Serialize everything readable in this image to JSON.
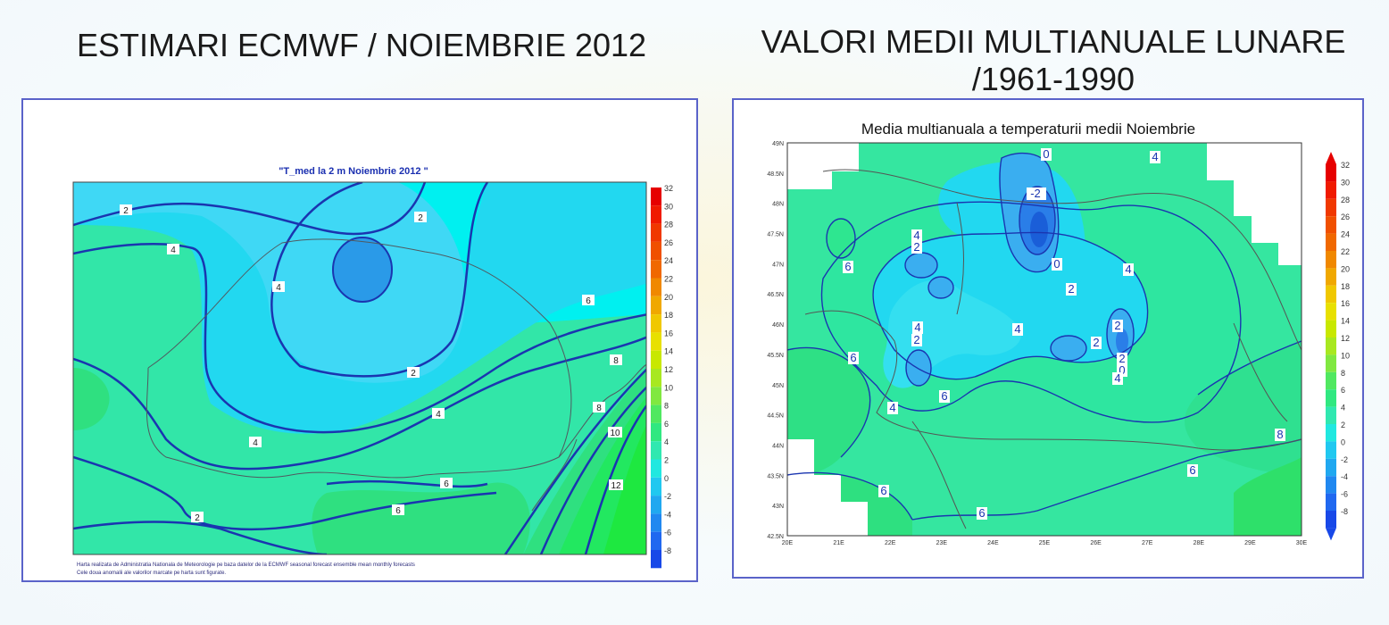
{
  "slide": {
    "left_title": "ESTIMARI ECMWF / NOIEMBRIE 2012",
    "right_title_line1": "VALORI MEDII MULTIANUALE LUNARE",
    "right_title_line2": "/1961-1990"
  },
  "left_map": {
    "title": "\"T_med la 2 m Noiembrie 2012 \"",
    "footnote_line1": "Harta realizata de Administratia Nationala de Meteorologie pe baza datelor de la ECMWF seasonal forecast ensemble mean monthly forecasts",
    "footnote_line2": "Cele doua anomalii ale valorilor marcate pe harta sunt figurate.",
    "colorbar_labels": [
      "32",
      "30",
      "28",
      "26",
      "24",
      "22",
      "20",
      "18",
      "16",
      "14",
      "12",
      "10",
      "8",
      "6",
      "4",
      "2",
      "0",
      "-2",
      "-4",
      "-6",
      "-8"
    ],
    "contour_labels": [
      "2",
      "2",
      "4",
      "4",
      "2",
      "4",
      "6",
      "4",
      "2",
      "6",
      "8",
      "6",
      "8",
      "10",
      "12",
      "6",
      "4"
    ]
  },
  "right_map": {
    "title": "Media multianuala a temperaturii medii Noiembrie",
    "y_ticks": [
      "49N",
      "48.5N",
      "48N",
      "47.5N",
      "47N",
      "46.5N",
      "46N",
      "45.5N",
      "45N",
      "44.5N",
      "44N",
      "43.5N",
      "43N",
      "42.5N"
    ],
    "x_ticks": [
      "20E",
      "21E",
      "22E",
      "23E",
      "24E",
      "25E",
      "26E",
      "27E",
      "28E",
      "29E",
      "30E"
    ],
    "colorbar_labels": [
      "32",
      "30",
      "28",
      "26",
      "24",
      "22",
      "20",
      "18",
      "16",
      "14",
      "12",
      "10",
      "8",
      "6",
      "4",
      "2",
      "0",
      "-2",
      "-4",
      "-6",
      "-8"
    ],
    "contour_labels": [
      "0",
      "-2",
      "0",
      "4",
      "2",
      "4",
      "2",
      "2",
      "6",
      "4",
      "2",
      "2",
      "0",
      "4",
      "2",
      "4",
      "4",
      "6",
      "4",
      "6",
      "8",
      "6",
      "6",
      "6"
    ]
  },
  "colors": {
    "title_text": "#1a1a1a",
    "panel_border": "#5a63c9",
    "contour_line": "#1a35b0",
    "cyan": "#00f0f0",
    "light_blue": "#22d8f0",
    "mid_blue": "#3aaef0",
    "teal_green": "#32e6a8",
    "green": "#2fe080",
    "bright_green": "#1ee840"
  }
}
